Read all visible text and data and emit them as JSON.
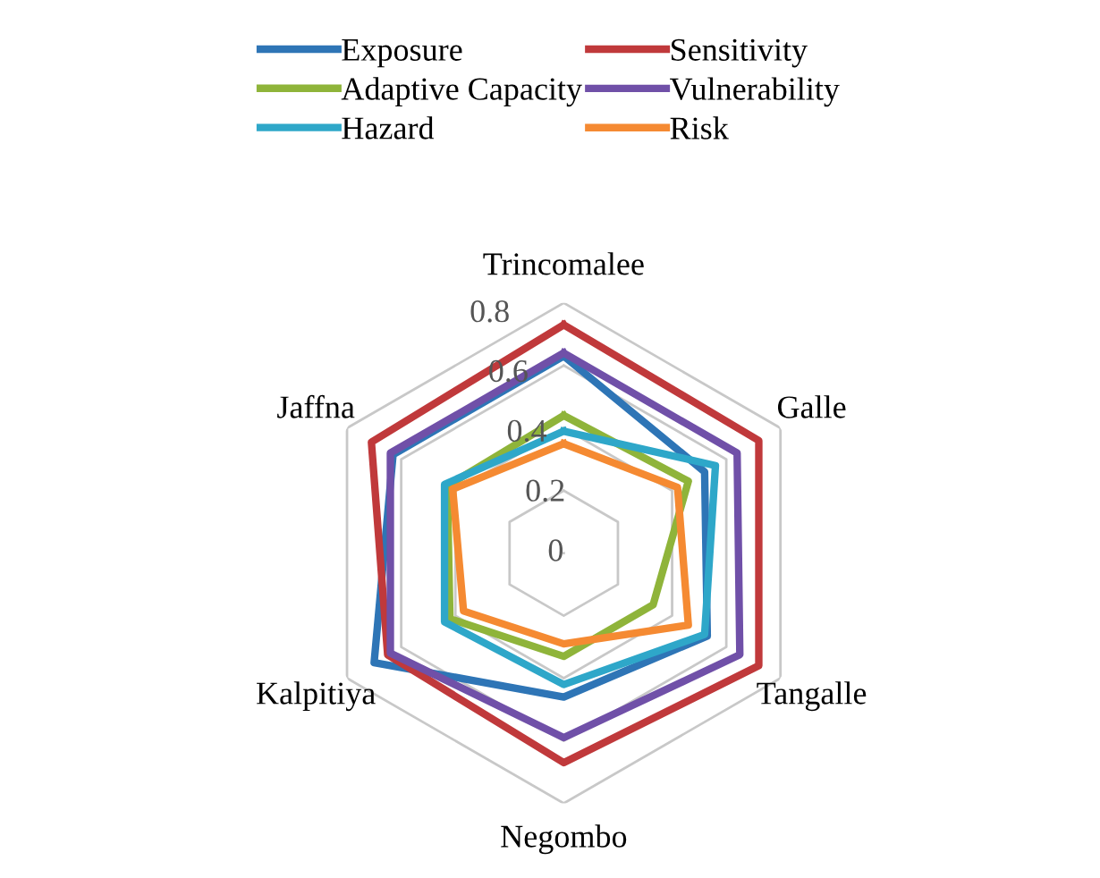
{
  "chart_data": {
    "type": "radar",
    "categories": [
      "Trincomalee",
      "Galle",
      "Tangalle",
      "Negombo",
      "Kalpitiya",
      "Jaffna"
    ],
    "ylim": [
      0,
      0.8
    ],
    "yticks": [
      0,
      0.2,
      0.4,
      0.6,
      0.8
    ],
    "grid": true,
    "legend": "top",
    "series": [
      {
        "name": "Exposure",
        "color": "#2e75b6",
        "values": [
          0.63,
          0.52,
          0.53,
          0.46,
          0.7,
          0.63
        ]
      },
      {
        "name": "Sensitivity",
        "color": "#c0393b",
        "values": [
          0.73,
          0.72,
          0.72,
          0.67,
          0.65,
          0.71
        ]
      },
      {
        "name": "Adaptive Capacity",
        "color": "#8fb43a",
        "values": [
          0.44,
          0.46,
          0.33,
          0.33,
          0.42,
          0.43
        ]
      },
      {
        "name": "Vulnerability",
        "color": "#7050a8",
        "values": [
          0.64,
          0.64,
          0.65,
          0.59,
          0.64,
          0.64
        ]
      },
      {
        "name": "Hazard",
        "color": "#2ea7c9",
        "values": [
          0.39,
          0.56,
          0.52,
          0.42,
          0.44,
          0.44
        ]
      },
      {
        "name": "Risk",
        "color": "#f58a32",
        "values": [
          0.35,
          0.42,
          0.46,
          0.29,
          0.37,
          0.41
        ]
      }
    ]
  }
}
